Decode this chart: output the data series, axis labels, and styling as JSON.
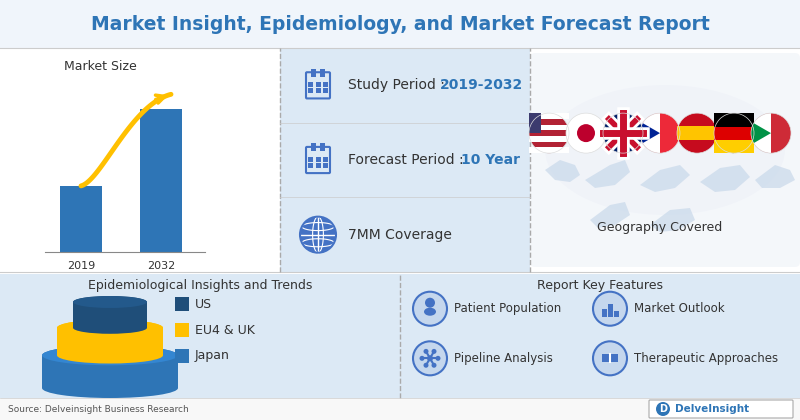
{
  "title": "Market Insight, Epidemiology, and Market Forecast Report",
  "title_color": "#2e75b6",
  "title_fontsize": 13.5,
  "bg_color": "#ffffff",
  "upper_section_bg": "#ffffff",
  "row_bg": "#dce9f5",
  "lower_section_bg": "#dce9f5",
  "divider_color": "#aaaaaa",
  "study_period_label": "Study Period : ",
  "study_period_value": "2019-2032",
  "forecast_label": "Forecast Period : ",
  "forecast_value": "10 Year",
  "coverage": "7MM Coverage",
  "year_start": "2019",
  "year_end": "2032",
  "market_size_label": "Market Size",
  "geography_label": "Geography Covered",
  "epi_label": "Epidemiological Insights and Trends",
  "features_label": "Report Key Features",
  "legend_items": [
    "US",
    "EU4 & UK",
    "Japan"
  ],
  "legend_colors": [
    "#1f4e79",
    "#ffc000",
    "#2e75b6"
  ],
  "features": [
    "Patient Population",
    "Market Outlook",
    "Pipeline Analysis",
    "Therapeutic Approaches"
  ],
  "source_text": "Source: Delveinsight Business Research",
  "logo_text": "DelveInsight",
  "bar_color": "#2e75b6",
  "arrow_color": "#ffc000",
  "icon_color": "#4472c4"
}
